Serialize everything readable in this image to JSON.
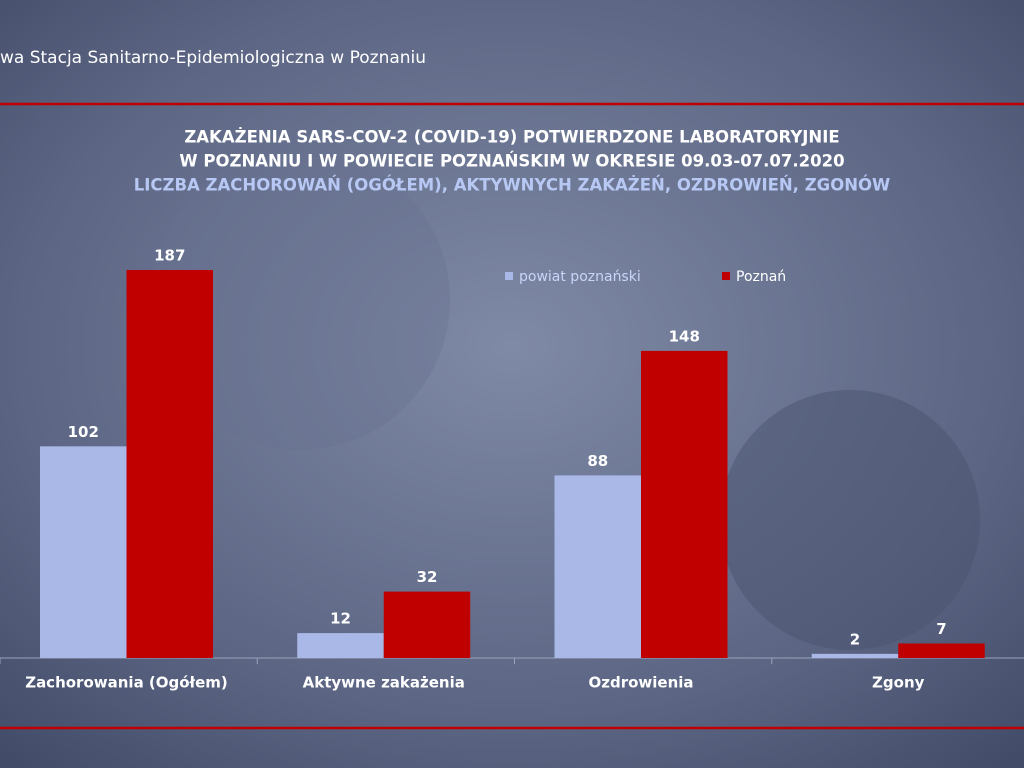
{
  "header": "wa Stacja Sanitarno-Epidemiologiczna w Poznaniu",
  "chart_data": {
    "type": "bar",
    "title": [
      "ZAKAŻENIA SARS-COV-2 (COVID-19) POTWIERDZONE LABORATORYJNIE",
      "W POZNANIU I W POWIECIE POZNAŃSKIM W OKRESIE 09.03-07.07.2020"
    ],
    "subtitle": "LICZBA ZACHOROWAŃ (OGÓŁEM), AKTYWNYCH ZAKAŻEŃ, OZDROWIEŃ, ZGONÓW",
    "categories": [
      "Zachorowania (Ogółem)",
      "Aktywne zakażenia",
      "Ozdrowienia",
      "Zgony"
    ],
    "series": [
      {
        "name": "powiat poznański",
        "color": "#aab8e8",
        "values": [
          102,
          12,
          88,
          2
        ]
      },
      {
        "name": "Poznań",
        "color": "#c00000",
        "values": [
          187,
          32,
          148,
          7
        ]
      }
    ],
    "legend": "top-right"
  }
}
